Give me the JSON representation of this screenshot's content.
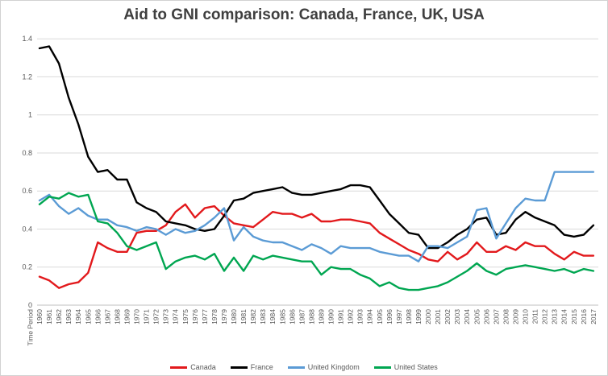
{
  "page": {
    "window_title": "Aid to GNI comparison chart"
  },
  "chart_data": {
    "type": "line",
    "title": "Aid to GNI comparison: Canada, France, UK, USA",
    "x_axis_label": "Time Period",
    "xlabel": "Time Period",
    "ylabel": "",
    "ylim": [
      0,
      1.4
    ],
    "grid": "horizontal",
    "legend_position": "bottom",
    "y_ticks": [
      0,
      0.2,
      0.4,
      0.6,
      0.8,
      1,
      1.2,
      1.4
    ],
    "y_tick_labels": [
      "0",
      "0.2",
      "0.4",
      "0.6",
      "0.8",
      "1",
      "1.2",
      "1.4"
    ],
    "categories": [
      "1960",
      "1961",
      "1962",
      "1963",
      "1964",
      "1965",
      "1966",
      "1967",
      "1968",
      "1969",
      "1970",
      "1971",
      "1972",
      "1973",
      "1974",
      "1975",
      "1976",
      "1977",
      "1978",
      "1979",
      "1980",
      "1981",
      "1982",
      "1983",
      "1984",
      "1985",
      "1986",
      "1987",
      "1988",
      "1989",
      "1990",
      "1991",
      "1992",
      "1993",
      "1994",
      "1995",
      "1996",
      "1997",
      "1998",
      "1999",
      "2000",
      "2001",
      "2002",
      "2003",
      "2004",
      "2005",
      "2006",
      "2007",
      "2008",
      "2009",
      "2010",
      "2011",
      "2012",
      "2013",
      "2014",
      "2015",
      "2016",
      "2017"
    ],
    "series": [
      {
        "name": "Canada",
        "color": "#e2191c",
        "values": [
          0.15,
          0.13,
          0.09,
          0.11,
          0.12,
          0.17,
          0.33,
          0.3,
          0.28,
          0.28,
          0.38,
          0.39,
          0.39,
          0.42,
          0.49,
          0.53,
          0.46,
          0.51,
          0.52,
          0.47,
          0.43,
          0.42,
          0.41,
          0.45,
          0.49,
          0.48,
          0.48,
          0.46,
          0.48,
          0.44,
          0.44,
          0.45,
          0.45,
          0.44,
          0.43,
          0.38,
          0.35,
          0.32,
          0.29,
          0.27,
          0.24,
          0.23,
          0.28,
          0.24,
          0.27,
          0.33,
          0.28,
          0.28,
          0.31,
          0.29,
          0.33,
          0.31,
          0.31,
          0.27,
          0.24,
          0.28,
          0.26,
          0.26
        ]
      },
      {
        "name": "France",
        "color": "#000000",
        "values": [
          1.35,
          1.36,
          1.27,
          1.09,
          0.95,
          0.78,
          0.7,
          0.71,
          0.66,
          0.66,
          0.54,
          0.51,
          0.49,
          0.44,
          0.43,
          0.42,
          0.4,
          0.39,
          0.4,
          0.47,
          0.55,
          0.56,
          0.59,
          0.6,
          0.61,
          0.62,
          0.59,
          0.58,
          0.58,
          0.59,
          0.6,
          0.61,
          0.63,
          0.63,
          0.62,
          0.55,
          0.48,
          0.43,
          0.38,
          0.37,
          0.3,
          0.3,
          0.33,
          0.37,
          0.4,
          0.45,
          0.46,
          0.37,
          0.38,
          0.45,
          0.49,
          0.46,
          0.44,
          0.42,
          0.37,
          0.36,
          0.37,
          0.42
        ]
      },
      {
        "name": "United Kingdom",
        "color": "#5b9bd5",
        "values": [
          0.55,
          0.58,
          0.52,
          0.48,
          0.51,
          0.47,
          0.45,
          0.45,
          0.42,
          0.41,
          0.39,
          0.41,
          0.4,
          0.37,
          0.4,
          0.38,
          0.39,
          0.42,
          0.46,
          0.51,
          0.34,
          0.41,
          0.36,
          0.34,
          0.33,
          0.33,
          0.31,
          0.29,
          0.32,
          0.3,
          0.27,
          0.31,
          0.3,
          0.3,
          0.3,
          0.28,
          0.27,
          0.26,
          0.26,
          0.23,
          0.31,
          0.31,
          0.3,
          0.33,
          0.36,
          0.5,
          0.51,
          0.35,
          0.43,
          0.51,
          0.56,
          0.55,
          0.55,
          0.7,
          0.7,
          0.7,
          0.7,
          0.7
        ]
      },
      {
        "name": "United States",
        "color": "#00a651",
        "values": [
          0.53,
          0.57,
          0.56,
          0.59,
          0.57,
          0.58,
          0.44,
          0.43,
          0.38,
          0.31,
          0.29,
          0.31,
          0.33,
          0.19,
          0.23,
          0.25,
          0.26,
          0.24,
          0.27,
          0.18,
          0.25,
          0.18,
          0.26,
          0.24,
          0.26,
          0.25,
          0.24,
          0.23,
          0.23,
          0.16,
          0.2,
          0.19,
          0.19,
          0.16,
          0.14,
          0.1,
          0.12,
          0.09,
          0.08,
          0.08,
          0.09,
          0.1,
          0.12,
          0.15,
          0.18,
          0.22,
          0.18,
          0.16,
          0.19,
          0.2,
          0.21,
          0.2,
          0.19,
          0.18,
          0.19,
          0.17,
          0.19,
          0.18
        ]
      }
    ],
    "style": {
      "gridline_color": "#d9d9d9",
      "axis_line_color": "#bfbfbf",
      "tick_label_color": "#595959",
      "title_color": "#3f3f3f",
      "background": "#ffffff"
    }
  }
}
